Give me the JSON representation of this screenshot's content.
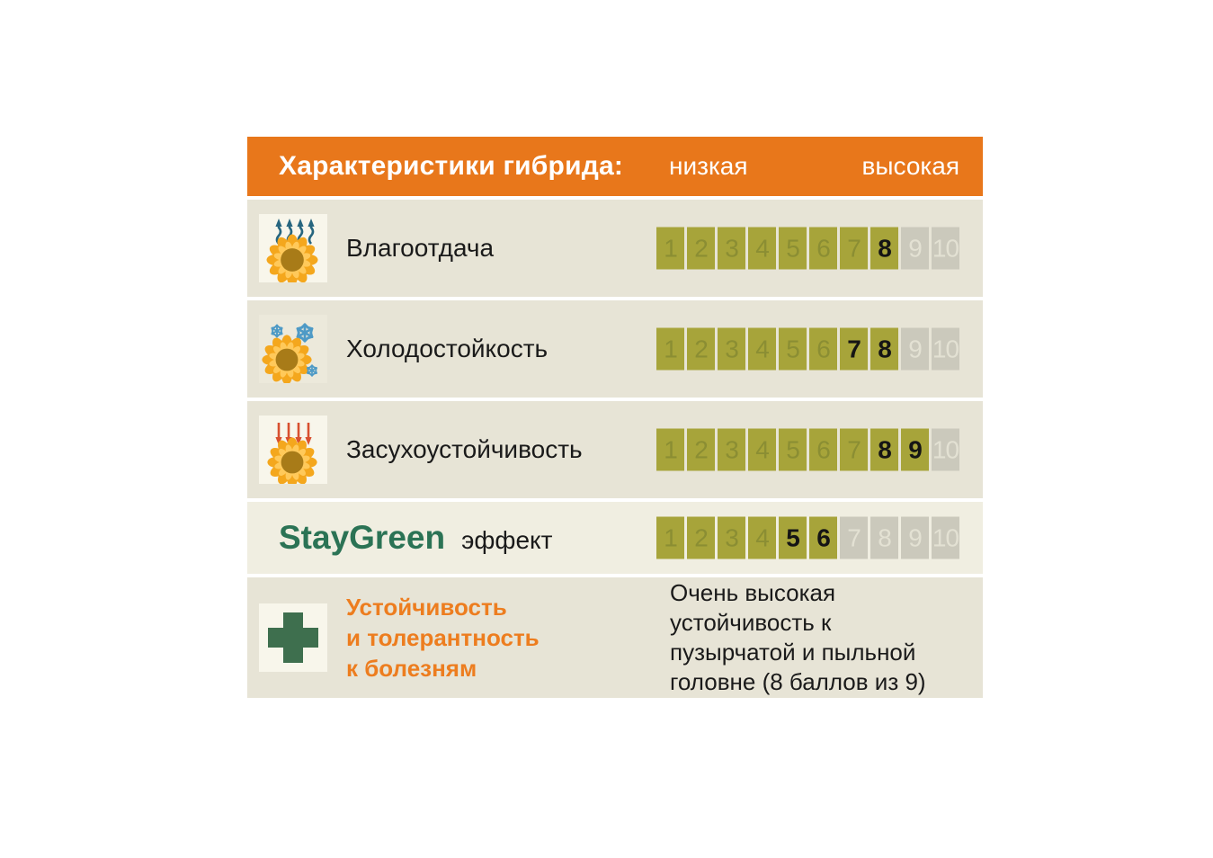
{
  "header": {
    "title": "Характеристики гибрида:",
    "scale_low_label": "низкая",
    "scale_high_label": "высокая"
  },
  "scale": {
    "min": 1,
    "max": 10
  },
  "rows": [
    {
      "key": "moisture-release",
      "type": "scale",
      "icon": "sunflower-moisture-icon",
      "label": "Влагоотдача",
      "rating": {
        "filled_count": 8,
        "highlighted": [
          8
        ]
      }
    },
    {
      "key": "cold-resistance",
      "type": "scale",
      "icon": "sunflower-cold-icon",
      "label": "Холодостойкость",
      "rating": {
        "filled_count": 8,
        "highlighted": [
          7,
          8
        ]
      }
    },
    {
      "key": "drought-resistance",
      "type": "scale",
      "icon": "sunflower-drought-icon",
      "label": "Засухоустойчивость",
      "rating": {
        "filled_count": 9,
        "highlighted": [
          8,
          9
        ]
      }
    },
    {
      "key": "staygreen-effect",
      "type": "scale-brand",
      "brand": "StayGreen",
      "label": "эффект",
      "rating": {
        "filled_count": 6,
        "highlighted": [
          5,
          6
        ]
      }
    },
    {
      "key": "disease-resistance",
      "type": "text",
      "icon": "medical-cross-icon",
      "label_lines": [
        "Устойчивость",
        "и толерантность",
        "к болезням"
      ],
      "value_lines": [
        "Очень высокая",
        "устойчивость к",
        "пузырчатой и пыльной",
        "головне (8 баллов из 9)"
      ]
    }
  ],
  "colors": {
    "header_background": "#E8771B",
    "row_background": "#E7E4D6",
    "row_background_light": "#F0EEE1",
    "icon_tile_background": "#F8F6EB",
    "cell_filled": "#A7A43A",
    "cell_empty": "#CBC9BC",
    "cell_number_dim": "#8B8E33",
    "cell_number_empty": "#E3E1D3",
    "cell_number_highlight": "#151515",
    "brand_green": "#2B7355",
    "accent_orange": "#ED7D1F",
    "sunflower_petal": "#F4A71D",
    "sunflower_center": "#A87B18",
    "moisture_arrow": "#27667F",
    "snowflake_blue": "#4E9AC6",
    "drought_arrow": "#D8502F",
    "cross_green": "#3E6F4E"
  },
  "chart_data": {
    "type": "table",
    "title": "Характеристики гибрида:",
    "scale": {
      "min": 1,
      "max": 10,
      "low_label": "низкая",
      "high_label": "высокая"
    },
    "rows": [
      {
        "characteristic": "Влагоотдача",
        "rating": [
          8
        ],
        "filled_range": [
          1,
          8
        ]
      },
      {
        "characteristic": "Холодостойкость",
        "rating": [
          7,
          8
        ],
        "filled_range": [
          1,
          8
        ]
      },
      {
        "characteristic": "Засухоустойчивость",
        "rating": [
          8,
          9
        ],
        "filled_range": [
          1,
          9
        ]
      },
      {
        "characteristic": "StayGreen эффект",
        "rating": [
          5,
          6
        ],
        "filled_range": [
          1,
          6
        ]
      },
      {
        "characteristic": "Устойчивость и толерантность к болезням",
        "rating_text": "Очень высокая устойчивость к пузырчатой и пыльной головне (8 баллов из 9)"
      }
    ]
  }
}
